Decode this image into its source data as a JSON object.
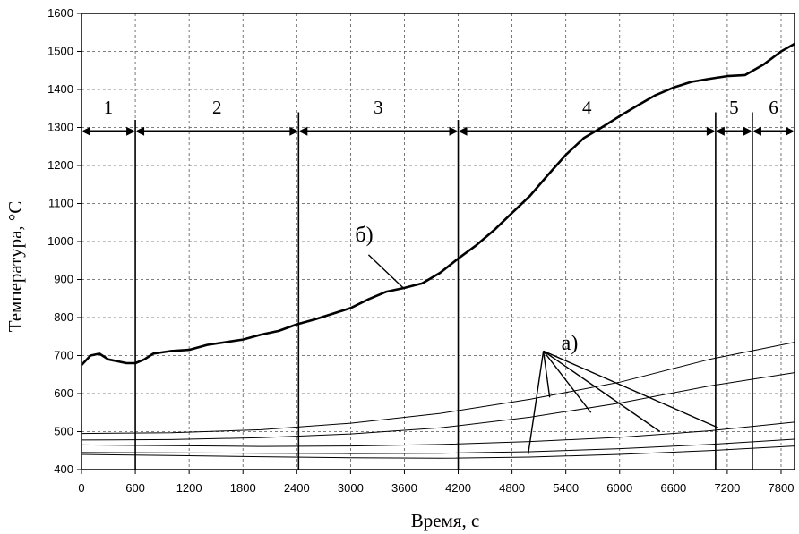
{
  "chart_data": {
    "type": "line",
    "title": "",
    "xlabel": "Время, с",
    "ylabel": "Температура, °C",
    "xlim": [
      0,
      7950
    ],
    "ylim": [
      400,
      1600
    ],
    "xticks": [
      0,
      600,
      1200,
      1800,
      2400,
      3000,
      3600,
      4200,
      4800,
      5400,
      6000,
      6600,
      7200,
      7800
    ],
    "yticks": [
      400,
      500,
      600,
      700,
      800,
      900,
      1000,
      1100,
      1200,
      1300,
      1400,
      1500,
      1600
    ],
    "grid": true,
    "stages": [
      {
        "label": "1",
        "x0": 0,
        "x1": 600
      },
      {
        "label": "2",
        "x0": 600,
        "x1": 2420
      },
      {
        "label": "3",
        "x0": 2420,
        "x1": 4200
      },
      {
        "label": "4",
        "x0": 4200,
        "x1": 7070
      },
      {
        "label": "5",
        "x0": 7070,
        "x1": 7480
      },
      {
        "label": "6",
        "x0": 7480,
        "x1": 7950
      }
    ],
    "stage_arrow_y": 1290,
    "stage_boundaries": [
      600,
      2420,
      4200,
      7070,
      7480
    ],
    "series": [
      {
        "name": "б)",
        "x": [
          0,
          100,
          200,
          300,
          400,
          500,
          600,
          700,
          800,
          1000,
          1200,
          1400,
          1600,
          1800,
          2000,
          2200,
          2400,
          2600,
          2800,
          3000,
          3200,
          3400,
          3600,
          3800,
          4000,
          4200,
          4400,
          4600,
          4800,
          5000,
          5200,
          5400,
          5600,
          5800,
          6000,
          6200,
          6400,
          6600,
          6800,
          7000,
          7200,
          7400,
          7600,
          7800,
          7950
        ],
        "y": [
          675,
          700,
          705,
          690,
          685,
          680,
          680,
          690,
          705,
          712,
          715,
          728,
          735,
          742,
          755,
          765,
          782,
          795,
          810,
          825,
          848,
          868,
          878,
          890,
          918,
          955,
          990,
          1030,
          1075,
          1120,
          1175,
          1228,
          1272,
          1300,
          1330,
          1358,
          1385,
          1405,
          1420,
          1428,
          1435,
          1438,
          1465,
          1500,
          1520
        ]
      },
      {
        "name": "",
        "x": [
          0,
          1000,
          2000,
          3000,
          4000,
          5000,
          6000,
          7000,
          7950
        ],
        "y": [
          495,
          497,
          505,
          522,
          548,
          585,
          630,
          690,
          735
        ]
      },
      {
        "name": "",
        "x": [
          0,
          1000,
          2000,
          3000,
          4000,
          5000,
          6000,
          7000,
          7950
        ],
        "y": [
          478,
          479,
          484,
          494,
          510,
          538,
          575,
          620,
          655
        ]
      },
      {
        "name": "",
        "x": [
          0,
          1000,
          2000,
          3000,
          4000,
          5000,
          6000,
          7000,
          7950
        ],
        "y": [
          465,
          463,
          461,
          462,
          466,
          474,
          485,
          502,
          525
        ]
      },
      {
        "name": "",
        "x": [
          0,
          1000,
          2000,
          3000,
          4000,
          5000,
          6000,
          7000,
          7950
        ],
        "y": [
          445,
          444,
          443,
          442,
          443,
          447,
          455,
          466,
          480
        ]
      },
      {
        "name": "",
        "x": [
          0,
          1000,
          2000,
          3000,
          4000,
          5000,
          6000,
          7000,
          7950
        ],
        "y": [
          440,
          437,
          434,
          431,
          430,
          433,
          440,
          450,
          462
        ]
      }
    ],
    "annotations": {
      "b_label": "б)",
      "b_label_pos": [
        3050,
        1000
      ],
      "b_arrow": [
        [
          3200,
          965
        ],
        [
          3600,
          875
        ]
      ],
      "a_label": "а)",
      "a_label_pos": [
        5350,
        715
      ],
      "a_origin": [
        5150,
        712
      ],
      "a_targets": [
        [
          4980,
          440
        ],
        [
          5220,
          590
        ],
        [
          5680,
          550
        ],
        [
          6450,
          500
        ],
        [
          7100,
          510
        ]
      ]
    }
  }
}
